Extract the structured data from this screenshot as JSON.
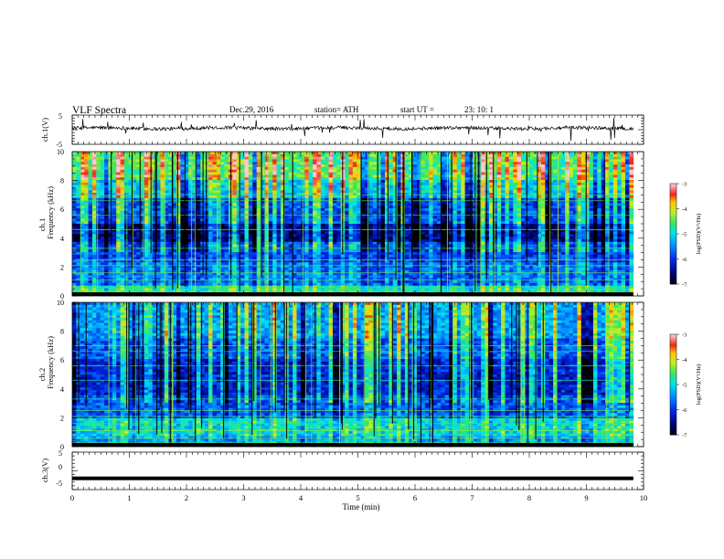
{
  "header": {
    "title": "VLF  Spectra",
    "date": "Dec.29, 2016",
    "station": "station= ATH",
    "start_label": "start  UT  =",
    "start_time": "23: 10: 1"
  },
  "chart_data": [
    {
      "type": "line",
      "name": "ch1-waveform",
      "ylabel": "ch.1(V)",
      "ylim": [
        -5,
        5
      ],
      "yticks": [
        "5",
        "-5"
      ],
      "xlim": [
        0,
        10
      ],
      "baseline": 0.5,
      "noise_amplitude": 1.2,
      "spike_amplitude": 4.5,
      "x_end": 9.82
    },
    {
      "type": "heatmap",
      "name": "ch1-spectrogram",
      "ylabel": "ch.1\nFrequency  (kHz)",
      "ylabel_top": "ch.1",
      "ylabel_bottom": "Frequency  (kHz)",
      "ylim": [
        0,
        10
      ],
      "yticks": [
        "0",
        "2",
        "4",
        "6",
        "8",
        "10"
      ],
      "xlim": [
        0,
        9.82
      ],
      "colorbar": {
        "label": "log(PSD)(V²/Hz)",
        "range": [
          -7,
          -3
        ],
        "ticks": [
          "-3",
          "-4",
          "-5",
          "-6",
          "-7"
        ]
      }
    },
    {
      "type": "heatmap",
      "name": "ch2-spectrogram",
      "ylabel_top": "ch.2",
      "ylabel_bottom": "Frequency  (kHz)",
      "ylim": [
        0,
        10
      ],
      "yticks": [
        "0",
        "2",
        "4",
        "6",
        "8",
        "10"
      ],
      "xlim": [
        0,
        9.82
      ],
      "colorbar": {
        "label": "log(PSD)(V²/Hz)",
        "range": [
          -7,
          -3
        ],
        "ticks": [
          "-3",
          "-4",
          "-5",
          "-6",
          "-7"
        ]
      }
    },
    {
      "type": "line",
      "name": "ch3-waveform",
      "ylabel": "ch.3(V)",
      "ylim": [
        -5,
        5
      ],
      "yticks": [
        "5",
        "0",
        "-5"
      ],
      "xlim": [
        0,
        10
      ],
      "baseline": -2.0,
      "x_end": 9.82
    }
  ],
  "xaxis": {
    "label": "Time  (min)",
    "ticks": [
      "0",
      "1",
      "2",
      "3",
      "4",
      "5",
      "6",
      "7",
      "8",
      "9",
      "10"
    ],
    "range": [
      0,
      10
    ]
  },
  "colors": {
    "background": "#ffffff",
    "axes": "#000000",
    "line": "#000000"
  }
}
